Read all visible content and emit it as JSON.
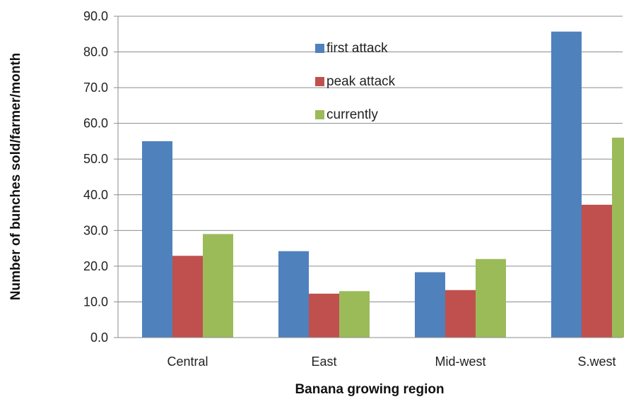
{
  "chart_data": {
    "type": "bar",
    "title": "",
    "xlabel": "Banana growing region",
    "ylabel": "Number of bunches sold/farmer/month",
    "categories": [
      "Central",
      "East",
      "Mid-west",
      "S.west"
    ],
    "series": [
      {
        "name": "first attack",
        "color": "#4f81bd",
        "values": [
          55.0,
          24.2,
          18.3,
          85.7
        ]
      },
      {
        "name": "peak attack",
        "color": "#c0504d",
        "values": [
          22.9,
          12.3,
          13.3,
          37.2
        ]
      },
      {
        "name": "currently",
        "color": "#9bbb59",
        "values": [
          29.0,
          13.0,
          22.0,
          56.0
        ]
      }
    ],
    "ylim": [
      0,
      90
    ],
    "yticks": [
      "0.0",
      "10.0",
      "20.0",
      "30.0",
      "40.0",
      "50.0",
      "60.0",
      "70.0",
      "80.0",
      "90.0"
    ],
    "grid": true,
    "legend_position": "top-center"
  }
}
